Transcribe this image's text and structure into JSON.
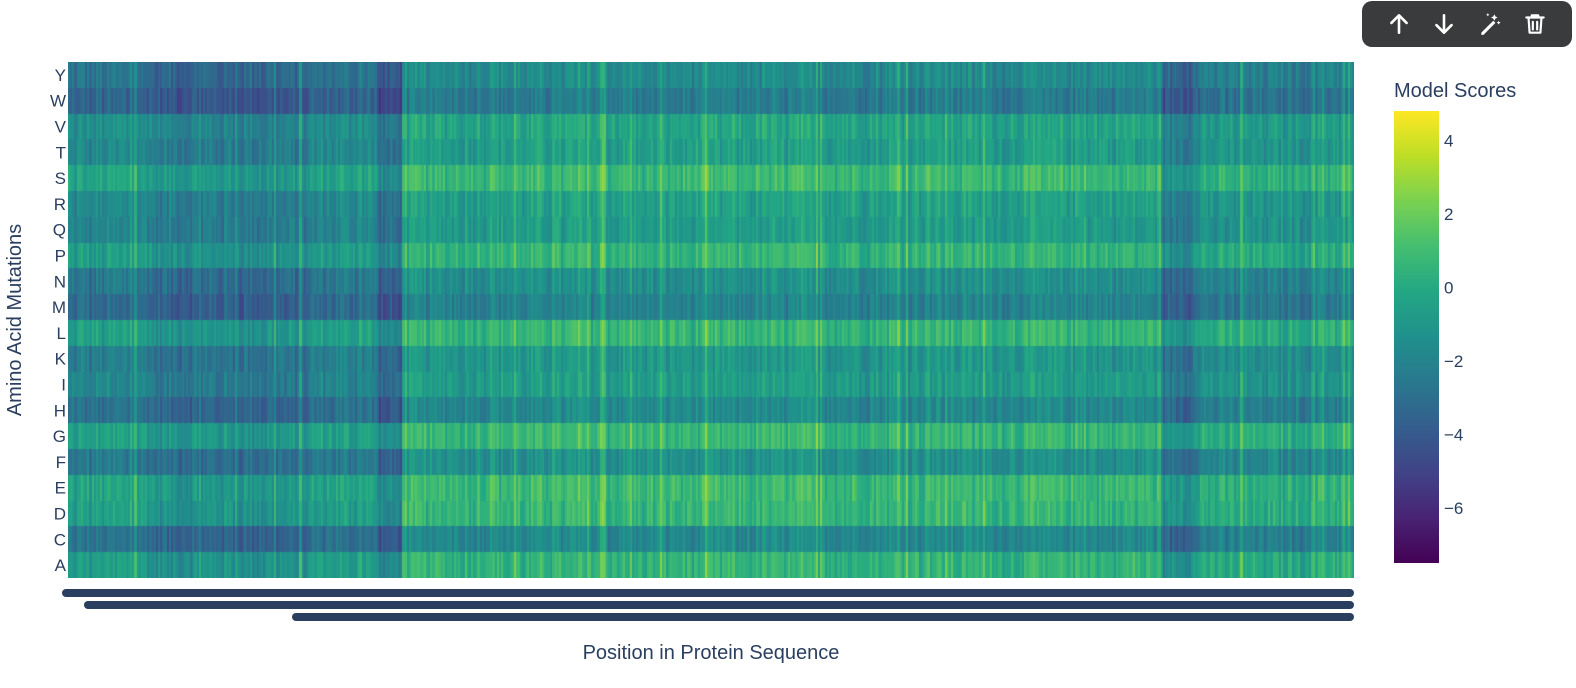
{
  "toolbar": {
    "icons": [
      "arrow-up-icon",
      "arrow-down-icon",
      "magic-edit-icon",
      "trash-icon"
    ]
  },
  "chart_data": {
    "type": "heatmap",
    "title": "",
    "xlabel": "Position in Protein Sequence",
    "ylabel": "Amino Acid Mutations",
    "y_categories": [
      "Y",
      "W",
      "V",
      "T",
      "S",
      "R",
      "Q",
      "P",
      "N",
      "M",
      "L",
      "K",
      "I",
      "H",
      "G",
      "F",
      "E",
      "D",
      "C",
      "A"
    ],
    "x_tick_labels": "dense, illegible (overlapping position labels)",
    "colorscale": "Viridis",
    "colorbar": {
      "title": "Model Scores",
      "range": [
        -7.5,
        4.8
      ],
      "ticks": [
        4,
        2,
        0,
        -2,
        -4,
        -6
      ],
      "tick_labels": [
        "4",
        "2",
        "0",
        "−2",
        "−4",
        "−6"
      ]
    },
    "row_mean_scores": {
      "Y": -1.8,
      "W": -2.6,
      "V": -0.5,
      "T": -0.8,
      "S": 0.6,
      "R": -0.7,
      "Q": -0.9,
      "P": 0.3,
      "N": -1.6,
      "M": -2.2,
      "L": 0.4,
      "K": -1.2,
      "I": -0.9,
      "H": -1.9,
      "G": 0.5,
      "F": -1.5,
      "E": 0.6,
      "D": 0.4,
      "C": -1.9,
      "A": 0.3
    },
    "approx_positions": 1200
  }
}
